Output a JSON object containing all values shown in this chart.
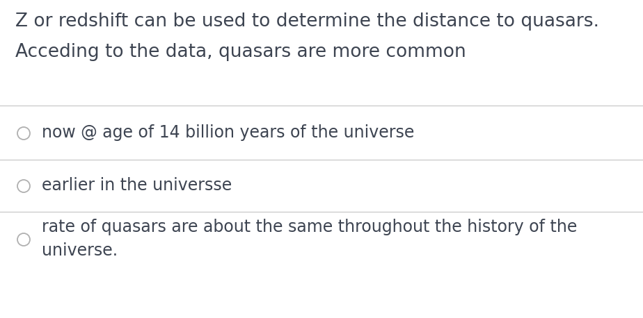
{
  "background_color": "#ffffff",
  "text_color": "#3d4451",
  "prompt_line1": "Z or redshift can be used to determine the distance to quasars.",
  "prompt_line2": "Acceding to the data, quasars are more common",
  "options": [
    "now @ age of 14 billion years of the universe",
    "earlier in the universse",
    "rate of quasars are about the same throughout the history of the\nuniverse."
  ],
  "divider_color": "#c8c8c8",
  "circle_edge_color": "#b0b0b0",
  "font_size_prompt": 19,
  "font_size_option": 17,
  "fig_width": 9.24,
  "fig_height": 4.58,
  "dpi": 100
}
